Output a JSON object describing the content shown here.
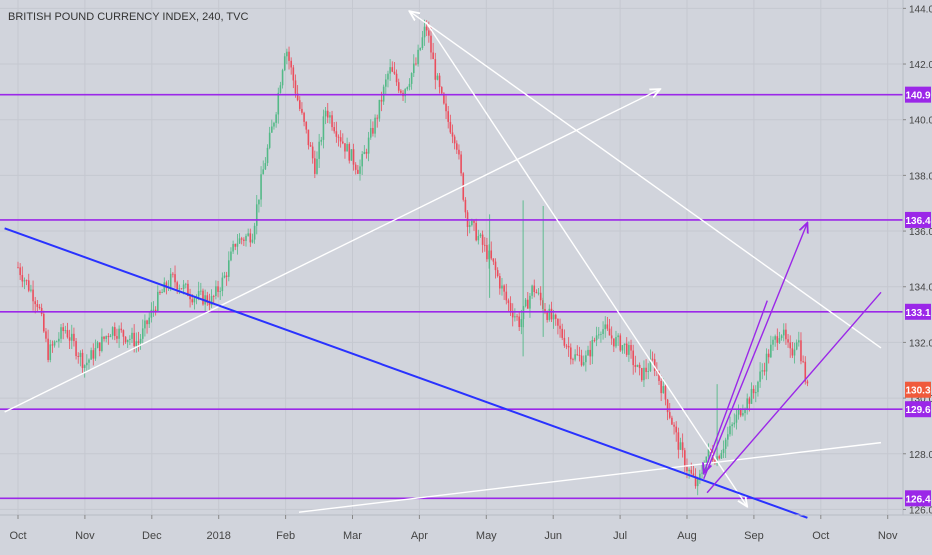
{
  "chart_data": {
    "type": "candlestick",
    "title": "BRITISH POUND CURRENCY INDEX, 240, TVC",
    "x_ticks": [
      "Oct",
      "Nov",
      "Dec",
      "2018",
      "Feb",
      "Mar",
      "Apr",
      "May",
      "Jun",
      "Jul",
      "Aug",
      "Sep",
      "Oct",
      "Nov"
    ],
    "y_ticks": [
      "144.0",
      "142.0",
      "140.0",
      "138.0",
      "136.0",
      "134.0",
      "132.0",
      "130.0",
      "128.0",
      "126.0"
    ],
    "ylim": [
      125.8,
      144.3
    ],
    "last_price": "130.3",
    "horizontal_levels": [
      {
        "value": 140.9,
        "label": "140.9"
      },
      {
        "value": 136.4,
        "label": "136.4"
      },
      {
        "value": 133.1,
        "label": "133.1"
      },
      {
        "value": 129.6,
        "label": "129.6"
      },
      {
        "value": 126.4,
        "label": "126.4"
      }
    ],
    "price_path": [
      [
        0,
        134.7
      ],
      [
        0.3,
        133.4
      ],
      [
        0.45,
        131.6
      ],
      [
        0.7,
        132.5
      ],
      [
        1.0,
        131.2
      ],
      [
        1.4,
        132.5
      ],
      [
        1.8,
        132.0
      ],
      [
        2.1,
        133.6
      ],
      [
        2.3,
        134.3
      ],
      [
        2.6,
        133.7
      ],
      [
        2.9,
        133.5
      ],
      [
        3.1,
        134.4
      ],
      [
        3.25,
        135.6
      ],
      [
        3.5,
        135.9
      ],
      [
        3.65,
        138.0
      ],
      [
        3.85,
        140.3
      ],
      [
        4.0,
        142.7
      ],
      [
        4.2,
        140.5
      ],
      [
        4.45,
        138.2
      ],
      [
        4.6,
        140.4
      ],
      [
        4.9,
        139.0
      ],
      [
        5.1,
        138.2
      ],
      [
        5.35,
        140.0
      ],
      [
        5.55,
        141.8
      ],
      [
        5.75,
        141.0
      ],
      [
        5.95,
        142.0
      ],
      [
        6.1,
        143.4
      ],
      [
        6.25,
        141.5
      ],
      [
        6.4,
        140.1
      ],
      [
        6.55,
        139.3
      ],
      [
        6.7,
        136.5
      ],
      [
        6.9,
        135.7
      ],
      [
        7.1,
        134.8
      ],
      [
        7.3,
        133.5
      ],
      [
        7.5,
        132.7
      ],
      [
        7.7,
        134.0
      ],
      [
        7.9,
        133.1
      ],
      [
        8.1,
        132.4
      ],
      [
        8.3,
        131.5
      ],
      [
        8.5,
        131.4
      ],
      [
        8.7,
        132.6
      ],
      [
        8.9,
        132.1
      ],
      [
        9.1,
        131.8
      ],
      [
        9.3,
        130.8
      ],
      [
        9.5,
        131.3
      ],
      [
        9.7,
        129.8
      ],
      [
        9.85,
        128.5
      ],
      [
        10.0,
        127.5
      ],
      [
        10.15,
        126.8
      ],
      [
        10.3,
        128.0
      ],
      [
        10.45,
        127.9
      ],
      [
        10.6,
        128.6
      ],
      [
        10.8,
        129.6
      ],
      [
        11.0,
        130.2
      ],
      [
        11.2,
        131.5
      ],
      [
        11.4,
        132.5
      ],
      [
        11.55,
        131.5
      ],
      [
        11.65,
        132.3
      ],
      [
        11.8,
        130.3
      ]
    ],
    "trend_lines": [
      {
        "color": "#ffffff",
        "arrow": "end",
        "points": [
          [
            -0.2,
            129.5
          ],
          [
            9.6,
            141.1
          ]
        ]
      },
      {
        "color": "#ffffff",
        "arrow": "start",
        "points": [
          [
            5.85,
            143.9
          ],
          [
            12.9,
            131.8
          ]
        ]
      },
      {
        "color": "#ffffff",
        "arrow": "end",
        "points": [
          [
            6.1,
            143.5
          ],
          [
            10.9,
            126.1
          ]
        ]
      },
      {
        "color": "#ffffff",
        "arrow": "none",
        "points": [
          [
            4.2,
            125.9
          ],
          [
            12.9,
            128.4
          ]
        ]
      },
      {
        "color": "#2932ff",
        "arrow": "none",
        "points": [
          [
            -0.2,
            136.1
          ],
          [
            11.8,
            125.7
          ]
        ]
      },
      {
        "color": "#9b27e8",
        "arrow": "end",
        "points": [
          [
            10.25,
            127.1
          ],
          [
            11.8,
            136.3
          ]
        ]
      },
      {
        "color": "#9b27e8",
        "arrow": "none",
        "points": [
          [
            10.3,
            126.6
          ],
          [
            12.9,
            133.8
          ]
        ]
      },
      {
        "color": "#9b27e8",
        "arrow": "end",
        "points": [
          [
            11.2,
            133.5
          ],
          [
            10.25,
            127.3
          ]
        ]
      }
    ]
  },
  "colors": {
    "background": "#d1d4dc",
    "level_line": "#9b27e8",
    "level_label_bg": "#9b27e8",
    "last_price_bg": "#f05a3c",
    "candle_up": "#53b987",
    "candle_down": "#eb4d5c",
    "axis_text": "#444444"
  }
}
